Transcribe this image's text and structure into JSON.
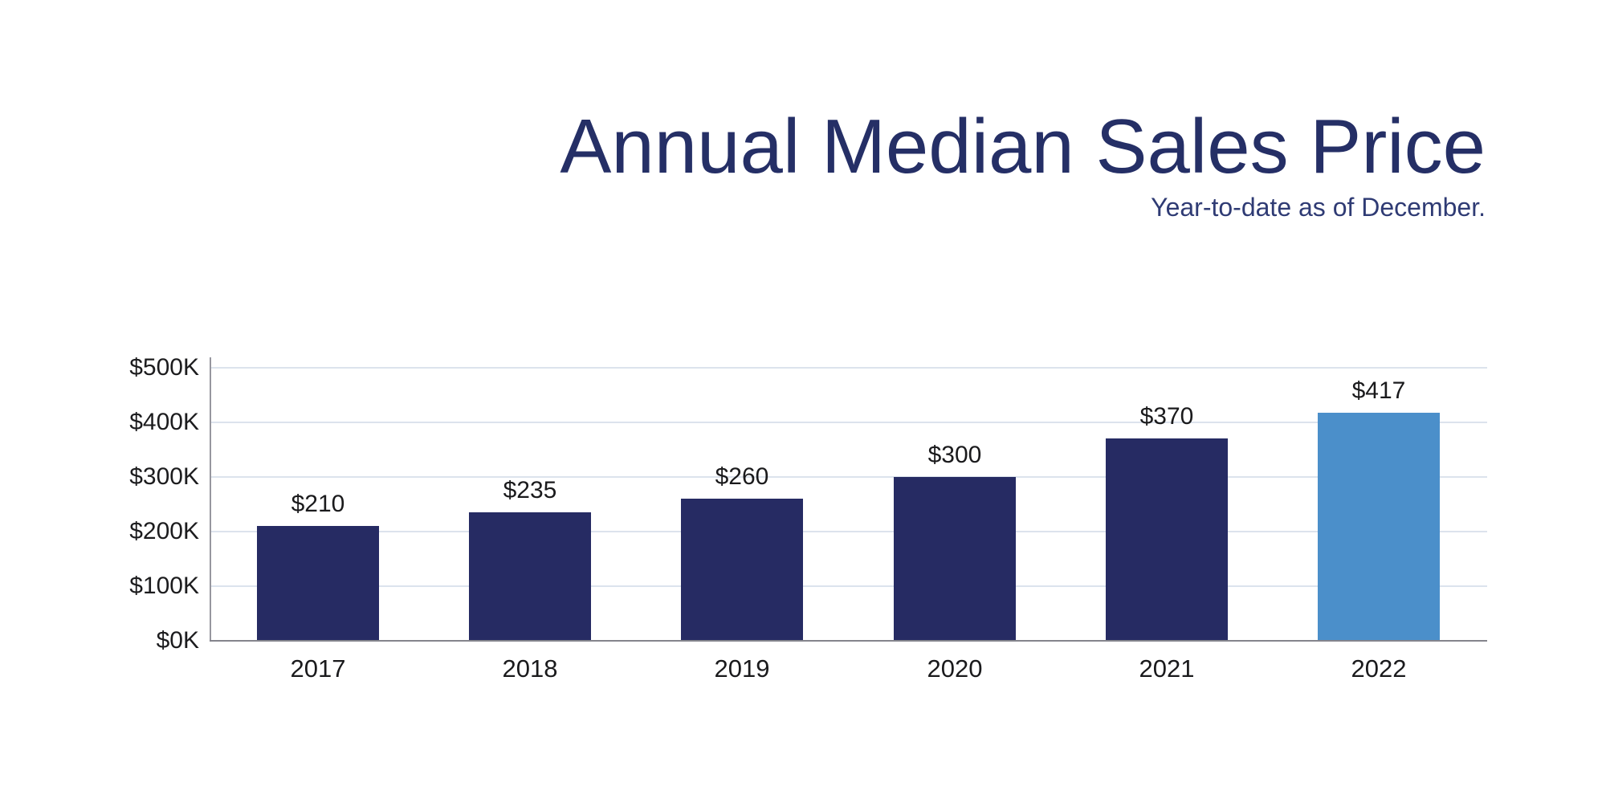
{
  "header": {
    "title": "Annual Median Sales Price",
    "subtitle": "Year-to-date as of December."
  },
  "chart_data": {
    "type": "bar",
    "title": "Annual Median Sales Price",
    "subtitle": "Year-to-date as of December.",
    "categories": [
      "2017",
      "2018",
      "2019",
      "2020",
      "2021",
      "2022"
    ],
    "values": [
      210,
      235,
      260,
      300,
      370,
      417
    ],
    "value_labels": [
      "$210",
      "$235",
      "$260",
      "$300",
      "$370",
      "$417"
    ],
    "highlight_index": 5,
    "ylim": [
      0,
      500
    ],
    "y_tick_values": [
      0,
      100,
      200,
      300,
      400,
      500
    ],
    "y_tick_labels": [
      "$0K",
      "$100K",
      "$200K",
      "$300K",
      "$400K",
      "$500K"
    ],
    "grid": true,
    "legend": false,
    "colors": {
      "bar_default": "#262b63",
      "bar_highlight": "#4b8fca",
      "gridline": "#dce3ed",
      "y_axis_line": "#97979f",
      "x_axis_line": "#84848c",
      "title_text": "#252f66",
      "subtitle_text": "#2f3b74",
      "tick_text": "#1c1c1e"
    }
  }
}
